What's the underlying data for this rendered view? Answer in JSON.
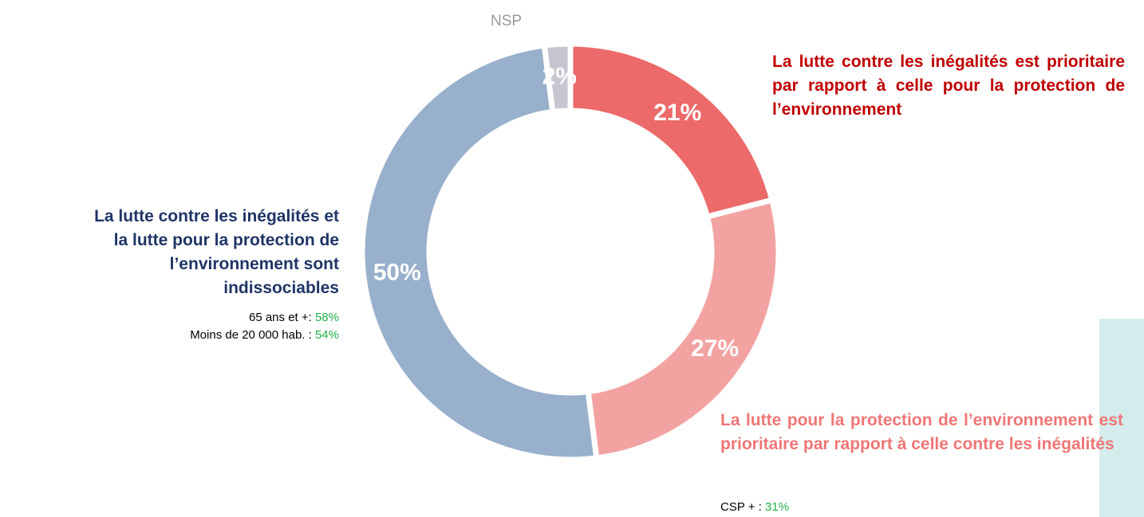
{
  "chart_data": {
    "type": "donut",
    "categories": [
      "La lutte contre les inégalités est prioritaire par rapport à celle pour la protection de l’environnement",
      "La lutte pour la protection de l’environnement est prioritaire par rapport à celle contre les inégalités",
      "La lutte contre les inégalités et la lutte pour la protection de l’environnement sont indissociables",
      "NSP"
    ],
    "values": [
      21,
      27,
      50,
      2
    ],
    "value_labels": [
      "21%",
      "27%",
      "50%",
      "2%"
    ],
    "colors": [
      "#ec6a6a",
      "#f3a2a2",
      "#98b0cb",
      "#c6c6d0"
    ],
    "label_colors": [
      "#c00000",
      "#ef7676",
      "#1f3566",
      "#999999"
    ],
    "annotations": [
      {
        "text": "CSP + :",
        "value": "31%"
      },
      {
        "text": "65 ans et +:",
        "value": "58%"
      },
      {
        "text": "Moins de 20 000 hab. :",
        "value": "54%"
      }
    ]
  }
}
